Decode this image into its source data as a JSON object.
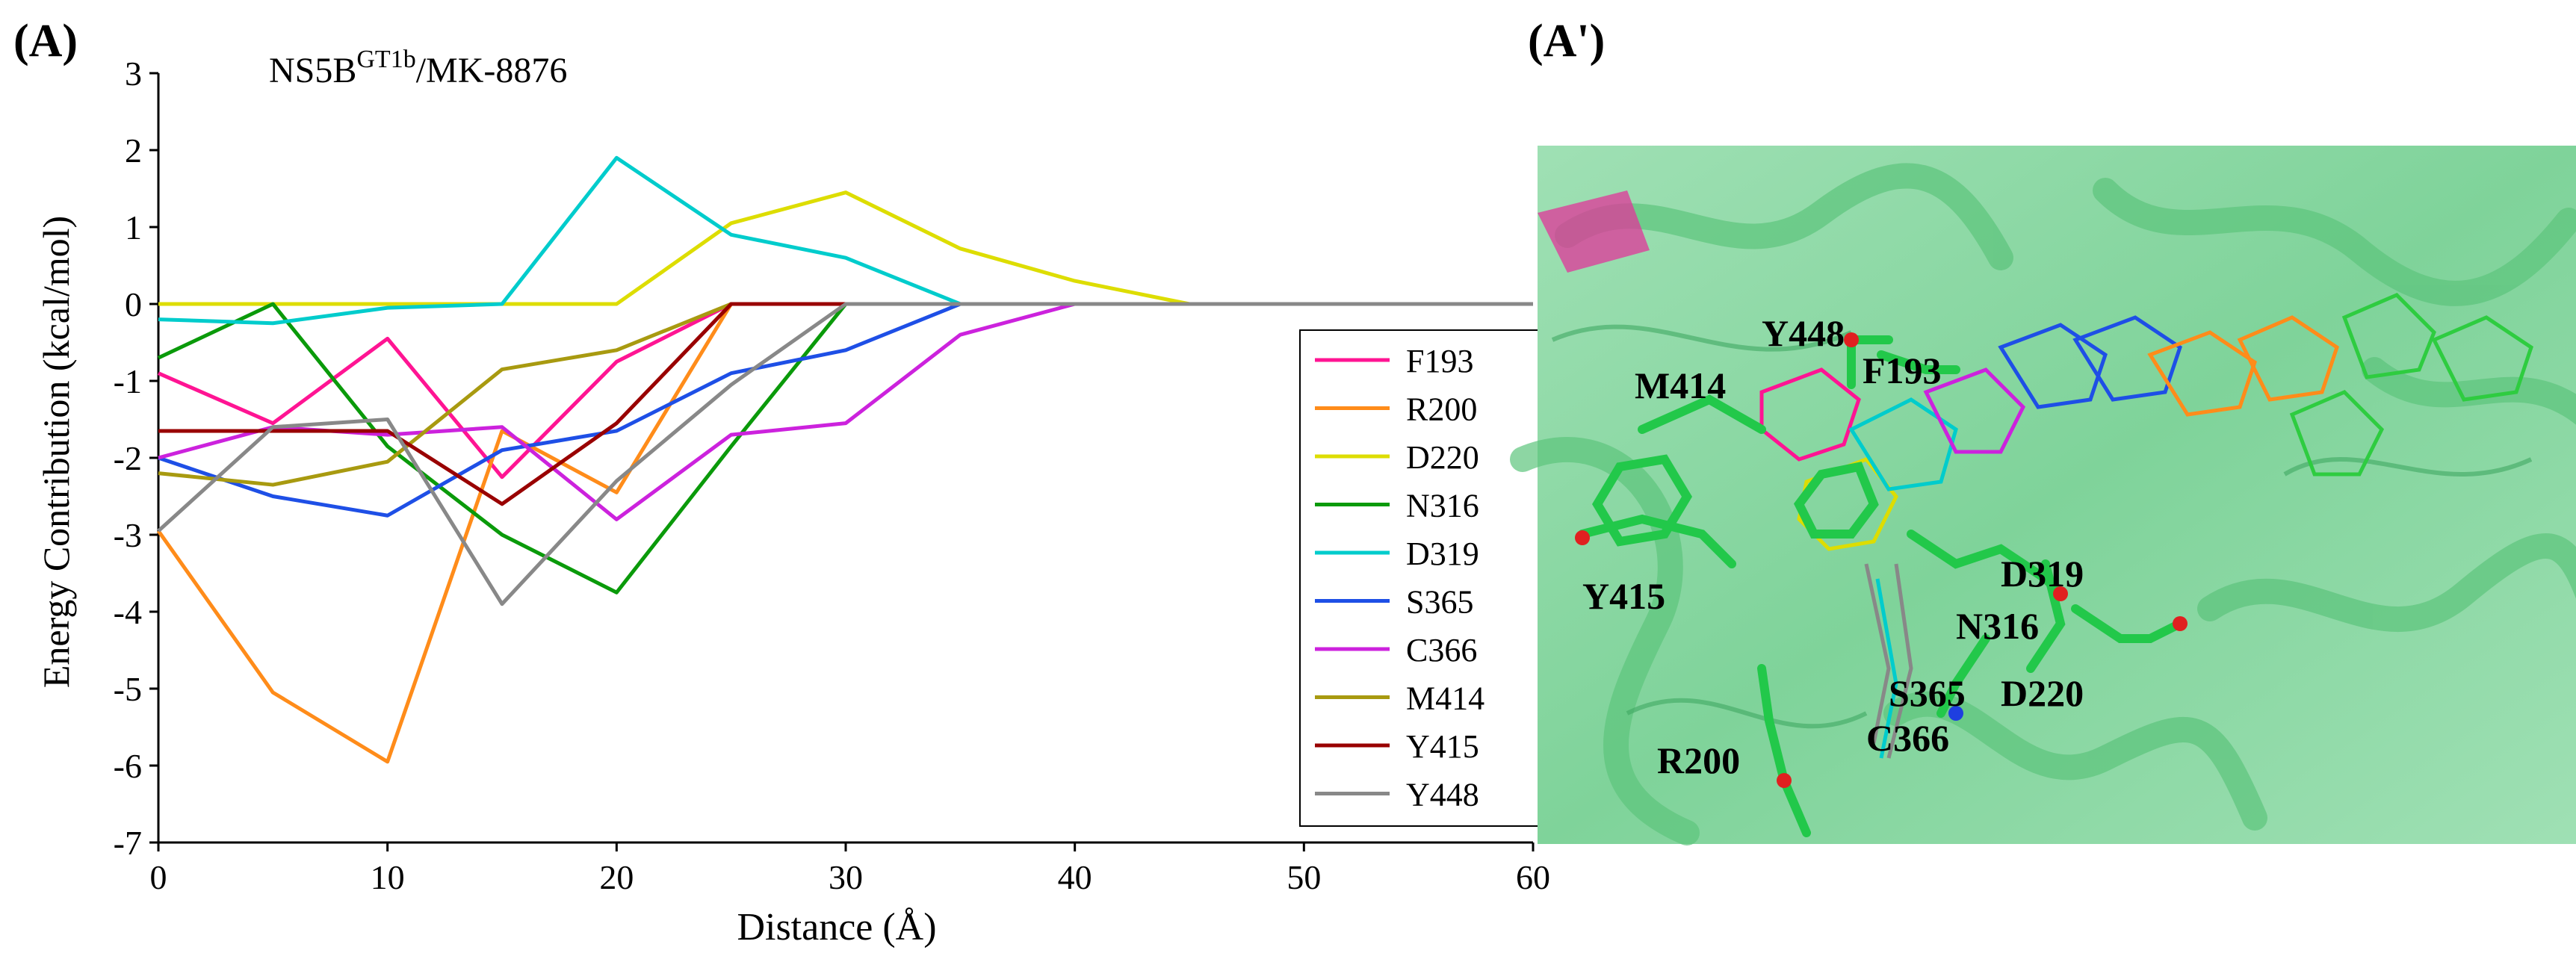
{
  "panels": {
    "left_label": "(A)",
    "right_label": "(A')"
  },
  "chart_data": {
    "type": "line",
    "title_main": "NS5B",
    "title_sup": "GT1b",
    "title_tail": "/MK-8876",
    "xlabel": "Distance (Å)",
    "ylabel": "Energy Contribution (kcal/mol)",
    "xlim": [
      0,
      60
    ],
    "ylim": [
      -7,
      3
    ],
    "xticks": [
      0,
      10,
      20,
      30,
      40,
      50,
      60
    ],
    "yticks": [
      -7,
      -6,
      -5,
      -4,
      -3,
      -2,
      -1,
      0,
      1,
      2,
      3
    ],
    "grid": false,
    "legend_position": "right",
    "x": [
      0,
      5,
      10,
      15,
      20,
      25,
      30,
      35,
      40,
      45,
      50,
      55,
      60
    ],
    "series": [
      {
        "name": "F193",
        "color": "#ff1493",
        "values": [
          -0.9,
          -1.55,
          -0.45,
          -2.25,
          -0.75,
          0,
          0,
          0,
          0,
          0,
          0,
          0,
          0
        ]
      },
      {
        "name": "R200",
        "color": "#ff8c1a",
        "values": [
          -2.95,
          -5.05,
          -5.95,
          -1.65,
          -2.45,
          0,
          0,
          0,
          0,
          0,
          0,
          0,
          0
        ]
      },
      {
        "name": "D220",
        "color": "#dddd00",
        "values": [
          0,
          0,
          0,
          0,
          0,
          1.05,
          1.45,
          0.72,
          0.3,
          0,
          0,
          0,
          0
        ]
      },
      {
        "name": "N316",
        "color": "#0a9a0a",
        "values": [
          -0.7,
          0,
          -1.85,
          -3.0,
          -3.75,
          -1.85,
          0,
          0,
          0,
          0,
          0,
          0,
          0
        ]
      },
      {
        "name": "D319",
        "color": "#00cccc",
        "values": [
          -0.2,
          -0.25,
          -0.05,
          0,
          1.9,
          0.9,
          0.6,
          0,
          0,
          0,
          0,
          0,
          0
        ]
      },
      {
        "name": "S365",
        "color": "#1e4fe6",
        "values": [
          -2.0,
          -2.5,
          -2.75,
          -1.9,
          -1.65,
          -0.9,
          -0.6,
          0,
          0,
          0,
          0,
          0,
          0
        ]
      },
      {
        "name": "C366",
        "color": "#cc22dd",
        "values": [
          -2.0,
          -1.6,
          -1.7,
          -1.6,
          -2.8,
          -1.7,
          -1.55,
          -0.4,
          0,
          0,
          0,
          0,
          0
        ]
      },
      {
        "name": "M414",
        "color": "#a89a10",
        "values": [
          -2.2,
          -2.35,
          -2.05,
          -0.85,
          -0.6,
          0,
          0,
          0,
          0,
          0,
          0,
          0,
          0
        ]
      },
      {
        "name": "Y415",
        "color": "#990000",
        "values": [
          -1.65,
          -1.65,
          -1.65,
          -2.6,
          -1.55,
          0,
          0,
          0,
          0,
          0,
          0,
          0,
          0
        ]
      },
      {
        "name": "Y448",
        "color": "#888888",
        "values": [
          -2.95,
          -1.6,
          -1.5,
          -3.9,
          -2.3,
          -1.05,
          0,
          0,
          0,
          0,
          0,
          0,
          0
        ]
      }
    ]
  },
  "structure_image": {
    "labels": [
      "Y448",
      "M414",
      "F193",
      "Y415",
      "D319",
      "N316",
      "S365",
      "C366",
      "D220",
      "R200"
    ]
  }
}
